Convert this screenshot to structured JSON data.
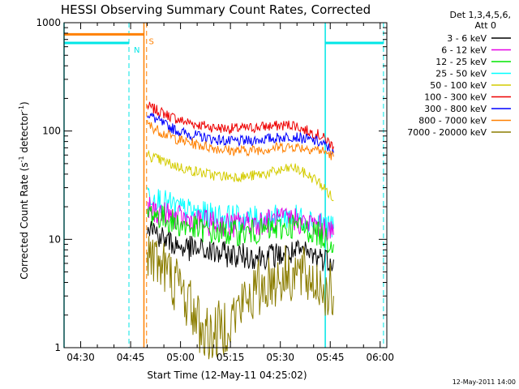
{
  "chart_data": {
    "type": "line",
    "title": "HESSI Observing Summary Count Rates, Corrected",
    "xlabel": "Start Time (12-May-11 04:25:02)",
    "ylabel_main": "Corrected Count Rate (s",
    "ylabel_sup1": "-1",
    "ylabel_mid": " detector",
    "ylabel_sup2": "-1",
    "ylabel_end": ")",
    "y_scale": "log",
    "ylim": [
      1,
      1000
    ],
    "xlim_minutes": [
      265,
      362
    ],
    "x_ticks": [
      {
        "label": "04:30",
        "t": 270
      },
      {
        "label": "04:45",
        "t": 285
      },
      {
        "label": "05:00",
        "t": 300
      },
      {
        "label": "05:15",
        "t": 315
      },
      {
        "label": "05:30",
        "t": 330
      },
      {
        "label": "05:45",
        "t": 345
      },
      {
        "label": "06:00",
        "t": 360
      }
    ],
    "y_ticks": [
      {
        "label": "1",
        "v": 1
      },
      {
        "label": "10",
        "v": 10
      },
      {
        "label": "100",
        "v": 100
      },
      {
        "label": "1000",
        "v": 1000
      }
    ],
    "legend": {
      "placement": "right",
      "header1": "Det 1,3,4,5,6,",
      "header2": "Att 0",
      "entries": [
        {
          "label": "3 - 6 keV",
          "color": "#000000"
        },
        {
          "label": "6 - 12 keV",
          "color": "#e600e6"
        },
        {
          "label": "12 - 25 keV",
          "color": "#00e600"
        },
        {
          "label": "25 - 50 keV",
          "color": "#00ffff"
        },
        {
          "label": "50 - 100 keV",
          "color": "#d4cc00"
        },
        {
          "label": "100 - 300 keV",
          "color": "#ee0000"
        },
        {
          "label": "300 - 800 keV",
          "color": "#0000ff"
        },
        {
          "label": "800 - 7000 keV",
          "color": "#ff8000"
        },
        {
          "label": "7000 - 20000 keV",
          "color": "#8b7d00"
        }
      ]
    },
    "flags": [
      {
        "label": "N",
        "color": "#00e6e6",
        "level": 650,
        "segments": [
          [
            265,
            284.5
          ],
          [
            343.5,
            361
          ]
        ],
        "bounds": [
          [
            265,
            284.5
          ],
          [
            343.5,
            361
          ]
        ]
      },
      {
        "label": "S",
        "color": "#ff8000",
        "level": 780,
        "segments": [
          [
            265,
            289
          ]
        ],
        "bounds": [
          [
            289,
            289.8
          ]
        ]
      }
    ],
    "series": [
      {
        "color": "#ee0000",
        "points": [
          [
            290,
            170
          ],
          [
            295,
            145
          ],
          [
            300,
            125
          ],
          [
            305,
            115
          ],
          [
            310,
            108
          ],
          [
            315,
            105
          ],
          [
            320,
            106
          ],
          [
            325,
            110
          ],
          [
            330,
            112
          ],
          [
            334,
            115
          ],
          [
            337,
            103
          ],
          [
            341,
            94
          ],
          [
            344,
            82
          ],
          [
            346,
            72
          ]
        ]
      },
      {
        "color": "#0000ff",
        "points": [
          [
            290,
            145
          ],
          [
            295,
            115
          ],
          [
            300,
            98
          ],
          [
            305,
            90
          ],
          [
            310,
            84
          ],
          [
            315,
            80
          ],
          [
            320,
            81
          ],
          [
            325,
            84
          ],
          [
            330,
            87
          ],
          [
            334,
            90
          ],
          [
            337,
            85
          ],
          [
            341,
            80
          ],
          [
            344,
            72
          ],
          [
            346,
            63
          ]
        ]
      },
      {
        "color": "#ff8000",
        "points": [
          [
            290,
            115
          ],
          [
            295,
            95
          ],
          [
            300,
            82
          ],
          [
            305,
            75
          ],
          [
            310,
            70
          ],
          [
            315,
            66
          ],
          [
            320,
            66
          ],
          [
            325,
            68
          ],
          [
            330,
            71
          ],
          [
            334,
            72
          ],
          [
            337,
            70
          ],
          [
            341,
            68
          ],
          [
            344,
            63
          ],
          [
            346,
            58
          ]
        ]
      },
      {
        "color": "#d4cc00",
        "points": [
          [
            290,
            60
          ],
          [
            295,
            52
          ],
          [
            300,
            46
          ],
          [
            305,
            42
          ],
          [
            310,
            39
          ],
          [
            315,
            38
          ],
          [
            320,
            38
          ],
          [
            325,
            40
          ],
          [
            330,
            43
          ],
          [
            334,
            46
          ],
          [
            337,
            41
          ],
          [
            341,
            35
          ],
          [
            344,
            28
          ],
          [
            346,
            23
          ]
        ]
      },
      {
        "color": "#00ffff",
        "points": [
          [
            290,
            27
          ],
          [
            295,
            22
          ],
          [
            300,
            19
          ],
          [
            305,
            17.5
          ],
          [
            310,
            16.5
          ],
          [
            315,
            16
          ],
          [
            320,
            15.5
          ],
          [
            325,
            15.5
          ],
          [
            330,
            16
          ],
          [
            334,
            16.5
          ],
          [
            337,
            15.5
          ],
          [
            341,
            15
          ],
          [
            344,
            14
          ],
          [
            346,
            12.5
          ]
        ]
      },
      {
        "color": "#e600e6",
        "points": [
          [
            290,
            19
          ],
          [
            295,
            17
          ],
          [
            300,
            15.5
          ],
          [
            305,
            14.5
          ],
          [
            310,
            14
          ],
          [
            315,
            13.5
          ],
          [
            320,
            14
          ],
          [
            325,
            14.5
          ],
          [
            330,
            15
          ],
          [
            334,
            15.5
          ],
          [
            337,
            14
          ],
          [
            341,
            13.5
          ],
          [
            344,
            12.5
          ],
          [
            346,
            11
          ]
        ]
      },
      {
        "color": "#00e600",
        "points": [
          [
            290,
            18
          ],
          [
            295,
            15.5
          ],
          [
            300,
            13.5
          ],
          [
            305,
            12.5
          ],
          [
            310,
            11.5
          ],
          [
            315,
            11.5
          ],
          [
            320,
            11.5
          ],
          [
            325,
            12
          ],
          [
            330,
            12.5
          ],
          [
            334,
            13.5
          ],
          [
            337,
            12.5
          ],
          [
            341,
            11.5
          ],
          [
            344,
            10
          ],
          [
            346,
            9
          ]
        ]
      },
      {
        "color": "#000000",
        "points": [
          [
            290,
            14
          ],
          [
            295,
            10
          ],
          [
            300,
            8.5
          ],
          [
            305,
            8
          ],
          [
            310,
            7.5
          ],
          [
            315,
            7.2
          ],
          [
            320,
            7
          ],
          [
            325,
            7
          ],
          [
            330,
            7.2
          ],
          [
            334,
            7.5
          ],
          [
            337,
            7.5
          ],
          [
            341,
            7
          ],
          [
            344,
            6.5
          ],
          [
            346,
            6.5
          ]
        ]
      },
      {
        "color": "#8b7d00",
        "points": [
          [
            290,
            8
          ],
          [
            295,
            5.5
          ],
          [
            300,
            3.5
          ],
          [
            303,
            2.5
          ],
          [
            305,
            1.8
          ],
          [
            307,
            1.4
          ],
          [
            310,
            1.3
          ],
          [
            313,
            1.6
          ],
          [
            316,
            2
          ],
          [
            319,
            2.6
          ],
          [
            322,
            3.2
          ],
          [
            326,
            4
          ],
          [
            330,
            4.5
          ],
          [
            334,
            5
          ],
          [
            337,
            4.5
          ],
          [
            341,
            4
          ],
          [
            344,
            3.5
          ],
          [
            346,
            3
          ]
        ]
      }
    ]
  },
  "footer": {
    "timestamp": "12-May-2011 14:00"
  }
}
